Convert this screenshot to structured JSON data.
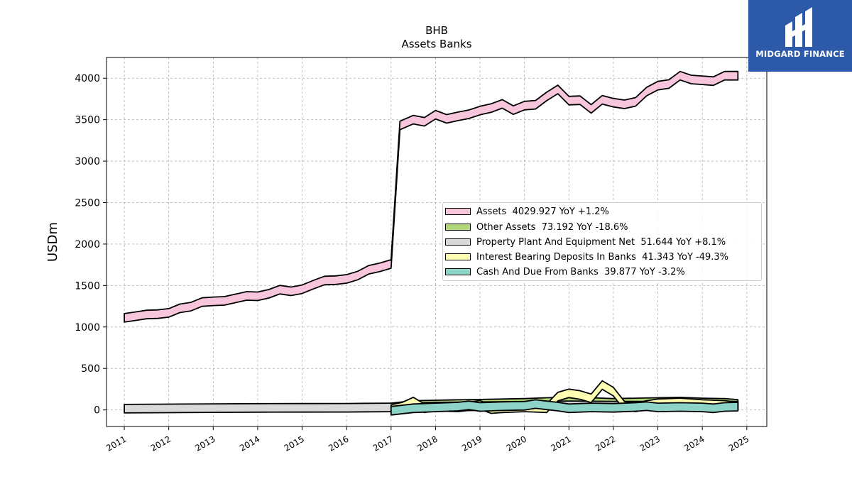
{
  "logo": {
    "text": "MIDGARD FINANCE",
    "icon": "midgard-logo-icon"
  },
  "chart_data": {
    "type": "area",
    "title": "BHB",
    "subtitle": "Assets Banks",
    "ylabel": "USDm",
    "xlabel": "",
    "xlim": [
      2010.6,
      2025.45
    ],
    "ylim": [
      -200,
      4250
    ],
    "yticks": [
      0,
      500,
      1000,
      1500,
      2000,
      2500,
      3000,
      3500,
      4000
    ],
    "xticks": [
      "2011",
      "2012",
      "2013",
      "2014",
      "2015",
      "2016",
      "2017",
      "2018",
      "2019",
      "2020",
      "2021",
      "2022",
      "2023",
      "2024",
      "2025"
    ],
    "grid": true,
    "legend_position": "center-right",
    "series": [
      {
        "name": "Assets",
        "legend": "Assets  4029.927 YoY +1.2%",
        "color": "#f8c6dc",
        "x": [
          2011.0,
          2011.25,
          2011.5,
          2011.75,
          2012.0,
          2012.25,
          2012.5,
          2012.75,
          2013.0,
          2013.25,
          2013.5,
          2013.75,
          2014.0,
          2014.25,
          2014.5,
          2014.75,
          2015.0,
          2015.25,
          2015.5,
          2015.75,
          2016.0,
          2016.25,
          2016.5,
          2016.75,
          2017.0,
          2017.2,
          2017.5,
          2017.75,
          2018.0,
          2018.25,
          2018.5,
          2018.75,
          2019.0,
          2019.25,
          2019.5,
          2019.75,
          2020.0,
          2020.25,
          2020.5,
          2020.75,
          2021.0,
          2021.25,
          2021.5,
          2021.75,
          2022.0,
          2022.25,
          2022.5,
          2022.75,
          2023.0,
          2023.25,
          2023.5,
          2023.75,
          2024.0,
          2024.25,
          2024.5,
          2024.8
        ],
        "values": [
          1110,
          1130,
          1150,
          1155,
          1170,
          1225,
          1245,
          1300,
          1310,
          1315,
          1345,
          1375,
          1370,
          1400,
          1450,
          1430,
          1455,
          1510,
          1560,
          1565,
          1580,
          1620,
          1690,
          1720,
          1760,
          3430,
          3500,
          3475,
          3560,
          3510,
          3540,
          3565,
          3610,
          3640,
          3690,
          3615,
          3670,
          3680,
          3780,
          3865,
          3730,
          3735,
          3630,
          3740,
          3705,
          3685,
          3715,
          3840,
          3910,
          3930,
          4030,
          3985,
          3975,
          3965,
          4030,
          4030
        ]
      },
      {
        "name": "Other Assets",
        "legend": "Other Assets  73.192 YoY -18.6%",
        "color": "#b3d67a",
        "x": [
          2017.0,
          2017.5,
          2018.0,
          2018.5,
          2019.0,
          2019.5,
          2020.0,
          2020.5,
          2021.0,
          2021.5,
          2022.0,
          2022.5,
          2023.0,
          2023.5,
          2024.0,
          2024.5,
          2024.8
        ],
        "values": [
          30,
          60,
          65,
          70,
          75,
          80,
          85,
          95,
          100,
          95,
          85,
          90,
          95,
          100,
          90,
          85,
          73
        ]
      },
      {
        "name": "Property Plant And Equipment Net",
        "legend": "Property Plant And Equipment Net  51.644 YoY +8.1%",
        "color": "#d9d9d9",
        "x": [
          2011.0,
          2012.0,
          2013.0,
          2014.0,
          2015.0,
          2016.0,
          2017.0,
          2018.0,
          2019.0,
          2020.0,
          2021.0,
          2022.0,
          2023.0,
          2024.0,
          2024.8
        ],
        "values": [
          15,
          18,
          22,
          24,
          25,
          26,
          30,
          40,
          45,
          50,
          55,
          52,
          50,
          48,
          52
        ]
      },
      {
        "name": "Interest Bearing Deposits In Banks",
        "legend": "Interest Bearing Deposits In Banks  41.343 YoY -49.3%",
        "color": "#ffffb3",
        "x": [
          2017.0,
          2017.25,
          2017.5,
          2017.75,
          2018.0,
          2018.5,
          2019.0,
          2019.25,
          2019.5,
          2020.0,
          2020.5,
          2020.75,
          2021.0,
          2021.25,
          2021.5,
          2021.75,
          2022.0,
          2022.25,
          2022.5,
          2022.75,
          2023.0,
          2023.5,
          2024.0,
          2024.5,
          2024.8
        ],
        "values": [
          10,
          40,
          100,
          20,
          40,
          30,
          60,
          10,
          20,
          30,
          20,
          160,
          200,
          180,
          140,
          300,
          220,
          50,
          30,
          60,
          80,
          90,
          70,
          60,
          41
        ]
      },
      {
        "name": "Cash And Due From Banks",
        "legend": "Cash And Due From Banks  39.877 YoY -3.2%",
        "color": "#8dd3c7",
        "x": [
          2017.0,
          2017.5,
          2018.0,
          2018.5,
          2018.75,
          2019.0,
          2019.5,
          2020.0,
          2020.25,
          2020.5,
          2020.75,
          2021.0,
          2021.5,
          2022.0,
          2022.5,
          2022.75,
          2023.0,
          2023.5,
          2024.0,
          2024.25,
          2024.5,
          2024.8
        ],
        "values": [
          -10,
          20,
          30,
          40,
          55,
          35,
          45,
          50,
          70,
          55,
          40,
          20,
          30,
          25,
          35,
          45,
          30,
          35,
          30,
          20,
          35,
          40
        ]
      }
    ]
  }
}
